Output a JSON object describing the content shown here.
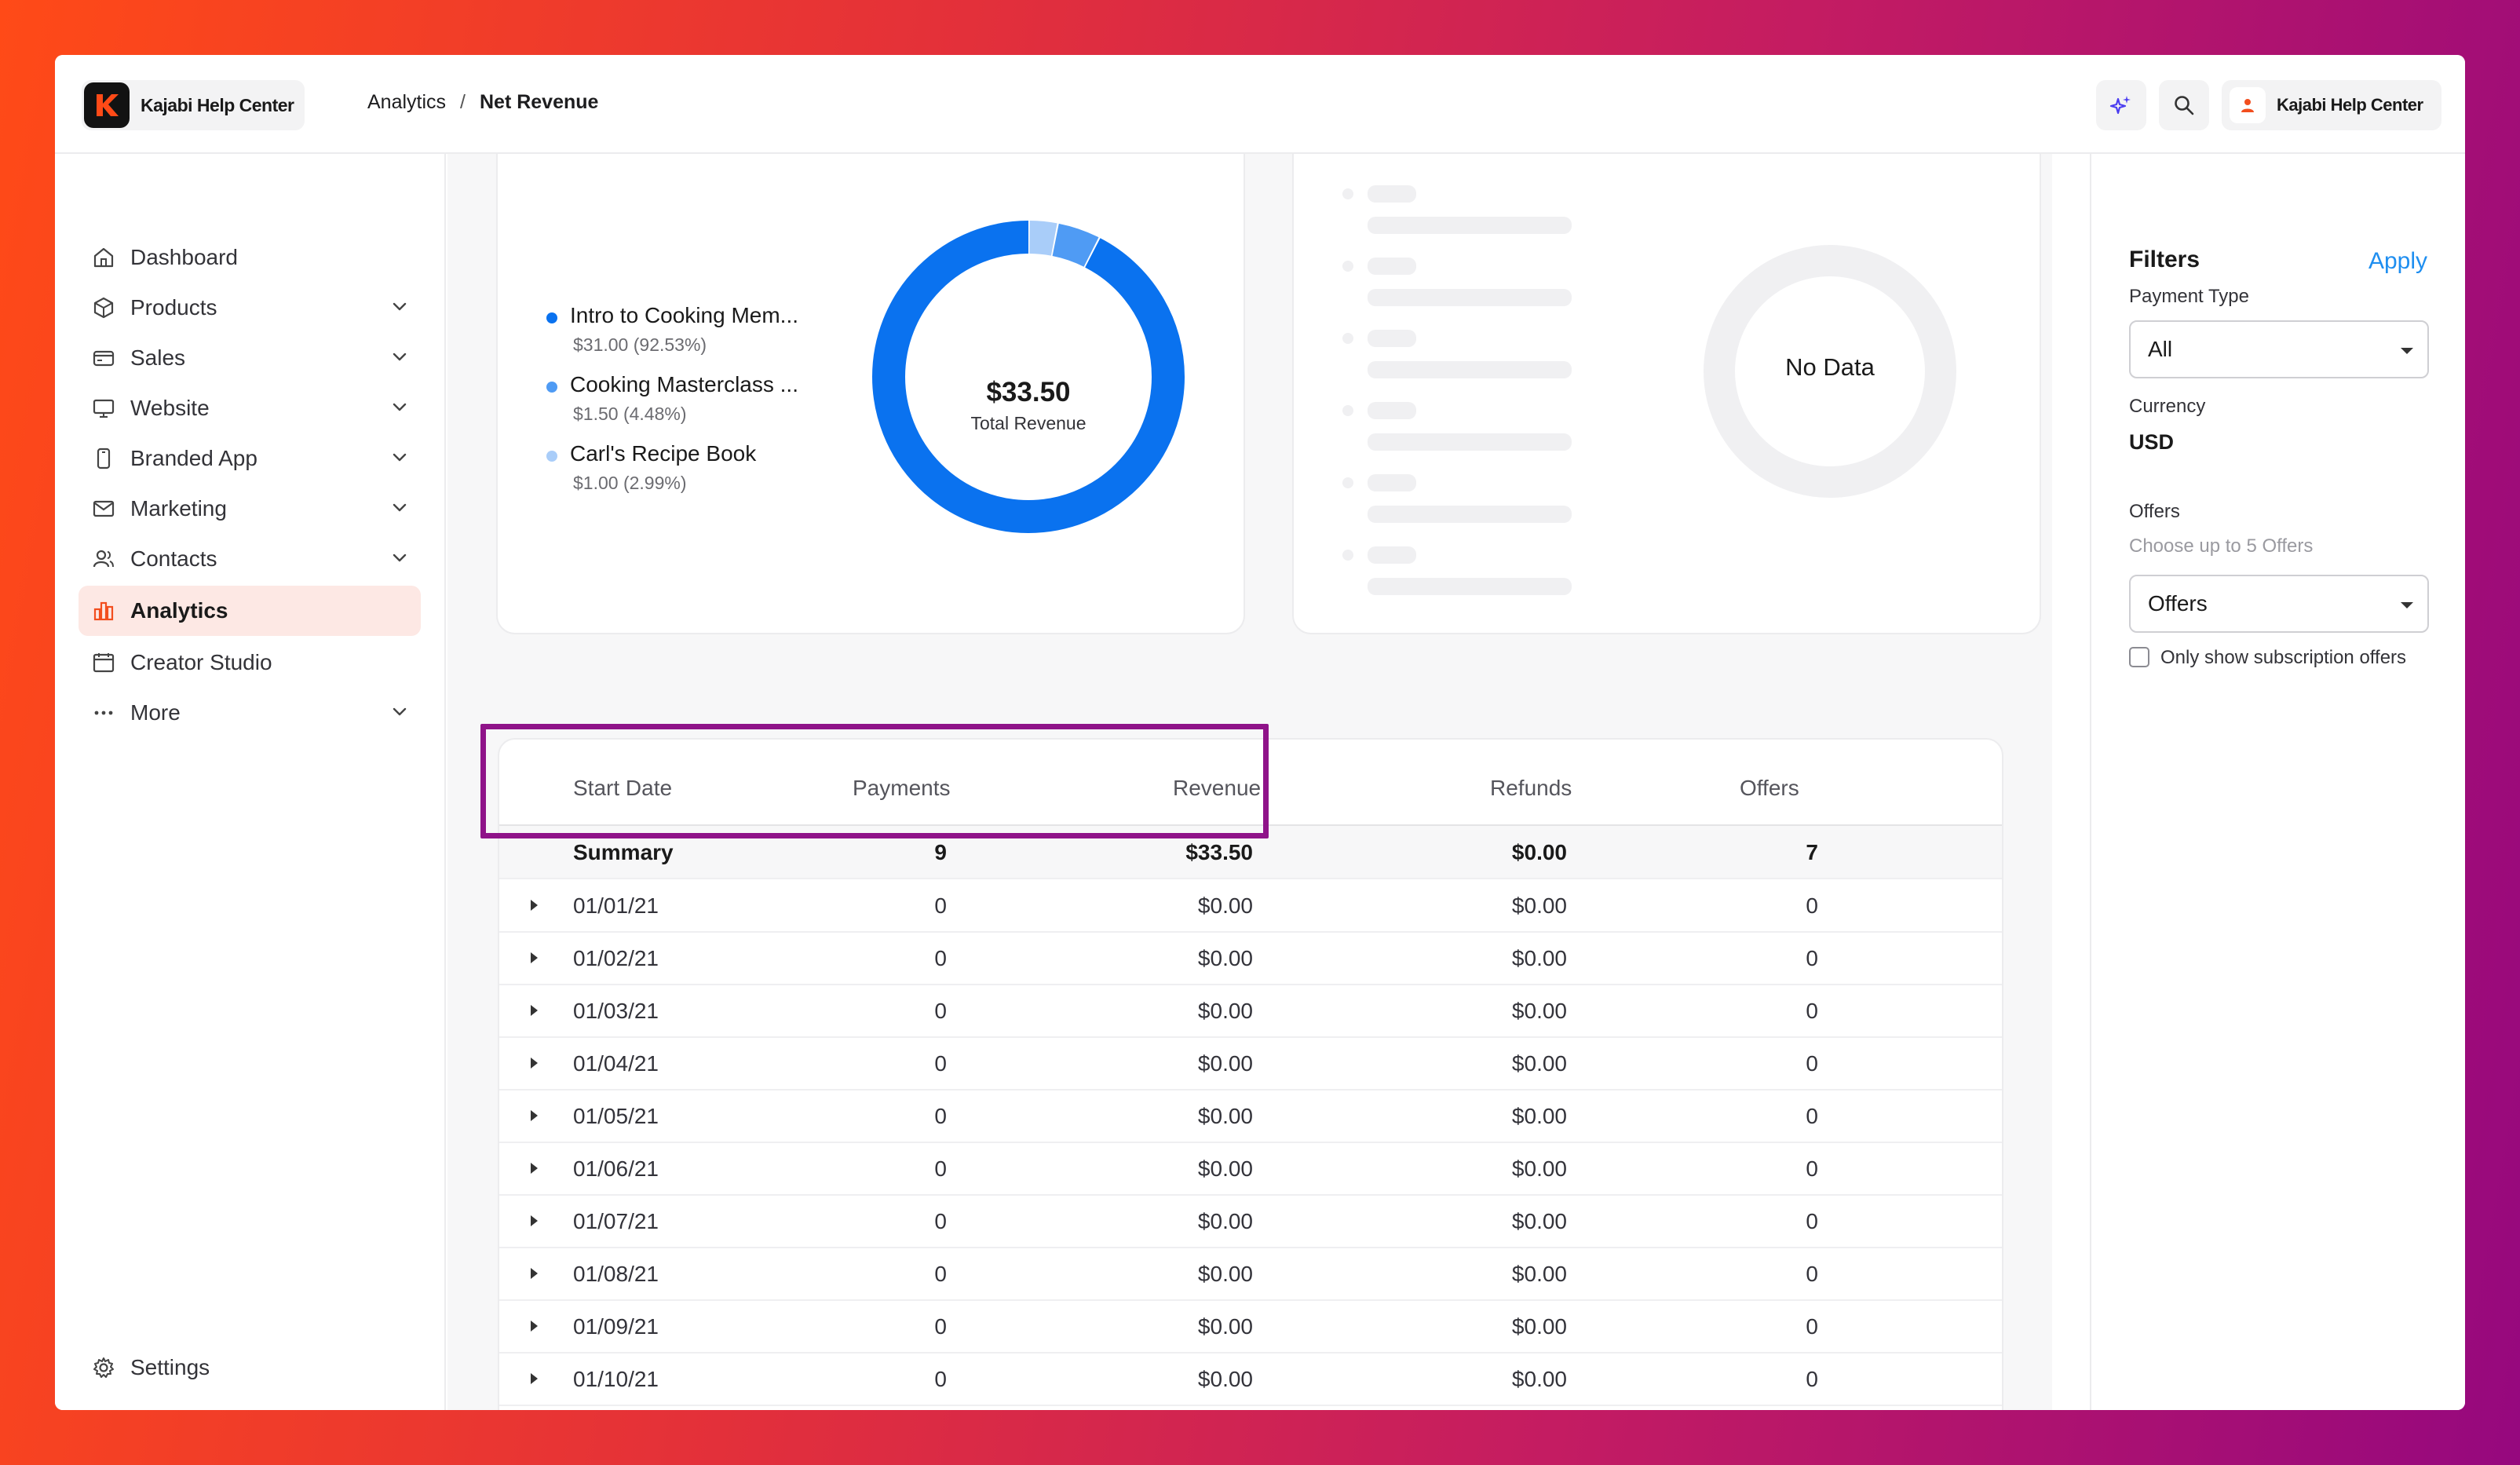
{
  "header": {
    "brand": "Kajabi Help Center",
    "breadcrumb": [
      "Analytics",
      "Net Revenue"
    ],
    "account_name": "Kajabi Help Center"
  },
  "sidebar": {
    "items": [
      {
        "label": "Dashboard",
        "icon": "home-icon",
        "expandable": false
      },
      {
        "label": "Products",
        "icon": "box-icon",
        "expandable": true
      },
      {
        "label": "Sales",
        "icon": "credit-card-icon",
        "expandable": true
      },
      {
        "label": "Website",
        "icon": "monitor-icon",
        "expandable": true
      },
      {
        "label": "Branded App",
        "icon": "phone-icon",
        "expandable": true
      },
      {
        "label": "Marketing",
        "icon": "mail-icon",
        "expandable": true
      },
      {
        "label": "Contacts",
        "icon": "users-icon",
        "expandable": true
      },
      {
        "label": "Analytics",
        "icon": "bar-chart-icon",
        "expandable": false,
        "active": true
      },
      {
        "label": "Creator Studio",
        "icon": "calendar-icon",
        "expandable": false
      },
      {
        "label": "More",
        "icon": "dots-icon",
        "expandable": true
      }
    ],
    "settings_label": "Settings"
  },
  "revenue_card": {
    "total": "$33.50",
    "total_label": "Total Revenue",
    "legend": [
      {
        "name": "Intro to Cooking Mem...",
        "detail": "$31.00 (92.53%)",
        "color": "#0a72ef"
      },
      {
        "name": "Cooking Masterclass ...",
        "detail": "$1.50 (4.48%)",
        "color": "#4f9bf4"
      },
      {
        "name": "Carl's Recipe Book",
        "detail": "$1.00 (2.99%)",
        "color": "#a9cdf9"
      }
    ]
  },
  "chart_data": {
    "type": "pie",
    "categories": [
      "Intro to Cooking Mem...",
      "Cooking Masterclass ...",
      "Carl's Recipe Book"
    ],
    "values": [
      31.0,
      1.5,
      1.0
    ]
  },
  "empty_card": {
    "message": "No Data"
  },
  "table": {
    "columns": [
      "Start Date",
      "Payments",
      "Revenue",
      "Refunds",
      "Offers"
    ],
    "summary": {
      "label": "Summary",
      "payments": "9",
      "revenue": "$33.50",
      "refunds": "$0.00",
      "offers": "7"
    },
    "rows": [
      {
        "date": "01/01/21",
        "payments": "0",
        "revenue": "$0.00",
        "refunds": "$0.00",
        "offers": "0"
      },
      {
        "date": "01/02/21",
        "payments": "0",
        "revenue": "$0.00",
        "refunds": "$0.00",
        "offers": "0"
      },
      {
        "date": "01/03/21",
        "payments": "0",
        "revenue": "$0.00",
        "refunds": "$0.00",
        "offers": "0"
      },
      {
        "date": "01/04/21",
        "payments": "0",
        "revenue": "$0.00",
        "refunds": "$0.00",
        "offers": "0"
      },
      {
        "date": "01/05/21",
        "payments": "0",
        "revenue": "$0.00",
        "refunds": "$0.00",
        "offers": "0"
      },
      {
        "date": "01/06/21",
        "payments": "0",
        "revenue": "$0.00",
        "refunds": "$0.00",
        "offers": "0"
      },
      {
        "date": "01/07/21",
        "payments": "0",
        "revenue": "$0.00",
        "refunds": "$0.00",
        "offers": "0"
      },
      {
        "date": "01/08/21",
        "payments": "0",
        "revenue": "$0.00",
        "refunds": "$0.00",
        "offers": "0"
      },
      {
        "date": "01/09/21",
        "payments": "0",
        "revenue": "$0.00",
        "refunds": "$0.00",
        "offers": "0"
      },
      {
        "date": "01/10/21",
        "payments": "0",
        "revenue": "$0.00",
        "refunds": "$0.00",
        "offers": "0"
      }
    ]
  },
  "filters": {
    "title": "Filters",
    "apply_label": "Apply",
    "payment_type_label": "Payment Type",
    "payment_type_value": "All",
    "currency_label": "Currency",
    "currency_value": "USD",
    "offers_label": "Offers",
    "offers_hint": "Choose up to 5 Offers",
    "offers_value": "Offers",
    "subscription_only_label": "Only show subscription offers"
  },
  "colors": {
    "accent_orange": "#f24e1e",
    "active_bg": "#fde8e4",
    "chart_blue": "#0a72ef",
    "link_blue": "#1e8ef0",
    "highlight_purple": "#8f1389"
  }
}
